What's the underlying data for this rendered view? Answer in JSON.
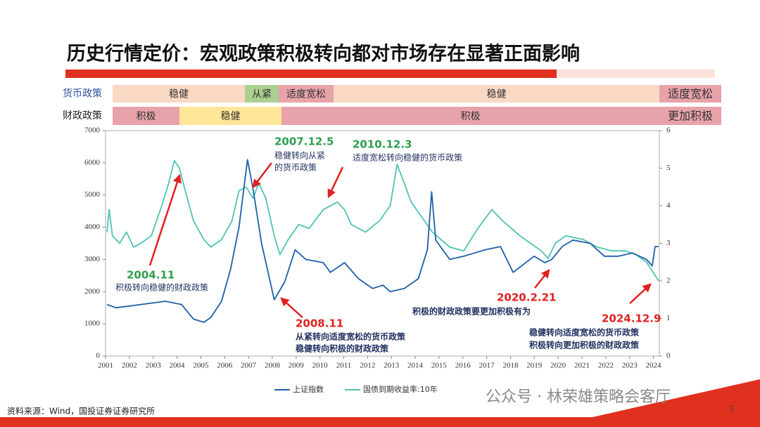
{
  "title": "历史行情定价：宏观政策积极转向都对市场存在显著正面影响",
  "policy": {
    "monetary": {
      "label": "货币政策",
      "segments": [
        {
          "text": "稳健",
          "color": "#f9d8c4"
        },
        {
          "text": "从紧",
          "color": "#a9d08e"
        },
        {
          "text": "适度宽松",
          "color": "#e8a3aa"
        },
        {
          "text": "稳健",
          "color": "#f9d8c4"
        },
        {
          "text": "适度宽松",
          "color": "#e8a3aa"
        }
      ]
    },
    "fiscal": {
      "label": "财政政策",
      "segments": [
        {
          "text": "积极",
          "color": "#e8a3aa"
        },
        {
          "text": "稳健",
          "color": "#ffe699"
        },
        {
          "text": "积极",
          "color": "#e8a3aa"
        },
        {
          "text": "更加积极",
          "color": "#e8a3aa"
        }
      ]
    }
  },
  "chart_data": {
    "type": "line",
    "xlim": [
      2001,
      2024.25
    ],
    "xticks": [
      2001,
      2002,
      2003,
      2004,
      2005,
      2006,
      2007,
      2008,
      2009,
      2010,
      2011,
      2012,
      2013,
      2014,
      2015,
      2016,
      2017,
      2018,
      2019,
      2020,
      2021,
      2022,
      2023,
      2024
    ],
    "ylim": [
      0,
      7000
    ],
    "yticks": [
      0,
      1000,
      2000,
      3000,
      4000,
      5000,
      6000,
      7000
    ],
    "y2lim": [
      0,
      6
    ],
    "y2ticks": [
      0,
      1,
      2,
      3,
      4,
      5,
      6
    ],
    "series": [
      {
        "name": "上证指数",
        "color": "#1d5fa6",
        "x": [
          2001.06,
          2001.44,
          2002.47,
          2003.51,
          2004.19,
          2004.69,
          2005.13,
          2005.42,
          2005.87,
          2006.25,
          2006.6,
          2006.96,
          2007.19,
          2007.55,
          2008.08,
          2008.52,
          2008.96,
          2009.41,
          2010.14,
          2010.44,
          2011.03,
          2011.62,
          2012.21,
          2012.65,
          2012.95,
          2013.54,
          2014.13,
          2014.51,
          2014.69,
          2014.86,
          2015.45,
          2016.04,
          2016.93,
          2017.58,
          2018.11,
          2018.99,
          2019.44,
          2019.73,
          2020.17,
          2020.62,
          2021.35,
          2021.94,
          2022.53,
          2023.12,
          2023.71,
          2023.95,
          2024.07,
          2024.22
        ],
        "values": [
          1600,
          1500,
          1600,
          1700,
          1600,
          1150,
          1050,
          1200,
          1700,
          2700,
          4000,
          6100,
          5200,
          3500,
          1750,
          2300,
          3300,
          3000,
          2900,
          2600,
          2900,
          2400,
          2100,
          2200,
          2000,
          2100,
          2400,
          3300,
          5100,
          3600,
          3000,
          3100,
          3300,
          3400,
          2600,
          3100,
          2900,
          3000,
          3400,
          3600,
          3500,
          3100,
          3100,
          3200,
          3000,
          2800,
          3400,
          3400
        ]
      },
      {
        "name": "国债到期收益率:10年",
        "color": "#4ec3b3",
        "axis": "y2",
        "x": [
          2001.06,
          2001.15,
          2001.29,
          2001.59,
          2001.88,
          2002.18,
          2002.47,
          2002.92,
          2003.36,
          2003.65,
          2003.89,
          2004.1,
          2004.39,
          2004.69,
          2005.13,
          2005.42,
          2005.87,
          2006.31,
          2006.6,
          2006.9,
          2007.19,
          2007.43,
          2007.73,
          2008.08,
          2008.32,
          2008.67,
          2009.11,
          2009.55,
          2010.14,
          2010.73,
          2011.03,
          2011.32,
          2011.91,
          2012.5,
          2012.95,
          2013.24,
          2013.54,
          2013.83,
          2014.27,
          2014.72,
          2015.45,
          2016.04,
          2016.63,
          2017.22,
          2017.67,
          2018.4,
          2019.29,
          2019.58,
          2019.88,
          2020.32,
          2021.06,
          2021.65,
          2022.24,
          2022.83,
          2023.27,
          2023.71,
          2024.22
        ],
        "values": [
          3.3,
          3.9,
          3.2,
          3.0,
          3.3,
          2.9,
          3.0,
          3.2,
          4.0,
          4.6,
          5.2,
          5.0,
          4.3,
          3.6,
          3.1,
          2.9,
          3.1,
          3.6,
          4.4,
          4.5,
          4.2,
          4.6,
          4.2,
          3.2,
          2.7,
          3.1,
          3.5,
          3.4,
          3.9,
          4.1,
          3.9,
          3.5,
          3.3,
          3.6,
          4.0,
          5.1,
          4.6,
          4.1,
          3.7,
          3.3,
          2.9,
          2.8,
          3.4,
          3.9,
          3.6,
          3.2,
          2.8,
          2.6,
          3.0,
          3.2,
          3.1,
          2.9,
          2.8,
          2.8,
          2.7,
          2.5,
          2.0
        ]
      }
    ],
    "annotations": [
      {
        "date": "2004.11",
        "color": "#2e9e4f",
        "text": [
          "积极转向稳健的财政政策"
        ]
      },
      {
        "date": "2007.12.5",
        "color": "#2e9e4f",
        "text": [
          "稳健转向从紧",
          "的货币政策"
        ]
      },
      {
        "date": "2010.12.3",
        "color": "#2e9e4f",
        "text": [
          "适度宽松转向稳健的货币政策"
        ]
      },
      {
        "date": "2008.11",
        "color": "#e02020",
        "text": [
          "从紧转向适度宽松的货币政策",
          "稳健转向积极的财政政策"
        ]
      },
      {
        "date": "2020.2.21",
        "color": "#e02020",
        "text": [
          "积极的财政政策要更加积极有为"
        ]
      },
      {
        "date": "2024.12.9",
        "color": "#e02020",
        "text": [
          "稳健转向适度宽松的货币政策",
          "积极转向更加积极的财政政策"
        ]
      }
    ]
  },
  "source": "资料来源：Wind，国投证券证券研究所",
  "watermark": "公众号 · 林荣雄策略会客厅",
  "page_number": "5"
}
